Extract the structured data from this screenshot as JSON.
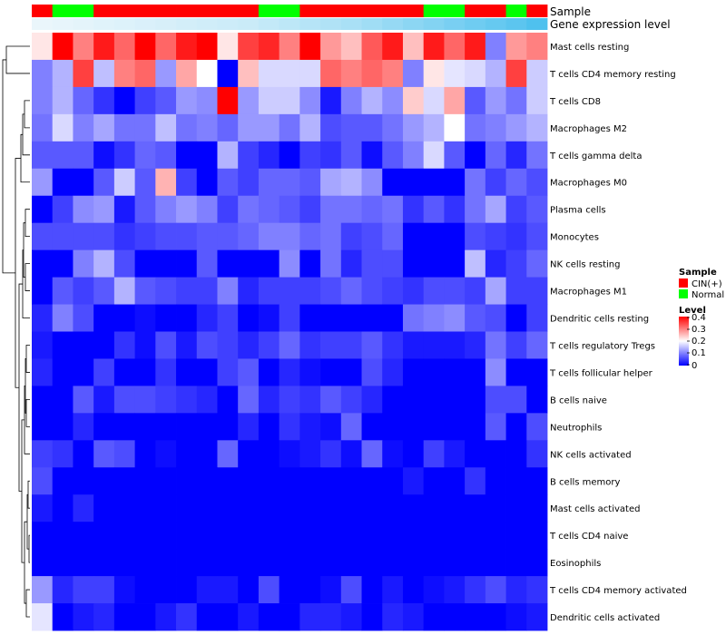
{
  "chart_data": {
    "type": "heatmap",
    "row_labels": [
      "Mast cells resting",
      "T cells CD4 memory resting",
      "T cells CD8",
      "Macrophages M2",
      "T cells gamma delta",
      "Macrophages M0",
      "Plasma cells",
      "Monocytes",
      "NK cells resting",
      "Macrophages M1",
      "Dendritic cells resting",
      "T cells regulatory  Tregs",
      "T cells follicular helper",
      "B cells naive",
      "Neutrophils",
      "NK cells activated",
      "B cells memory",
      "Mast cells activated",
      "T cells CD4 naive",
      "Eosinophils",
      "T cells CD4 memory activated",
      "Dendritic cells activated"
    ],
    "annotation_tracks": [
      {
        "name": "Sample",
        "values": [
          "CIN(+)",
          "Normal",
          "Normal",
          "CIN(+)",
          "CIN(+)",
          "CIN(+)",
          "CIN(+)",
          "CIN(+)",
          "CIN(+)",
          "CIN(+)",
          "CIN(+)",
          "Normal",
          "Normal",
          "CIN(+)",
          "CIN(+)",
          "CIN(+)",
          "CIN(+)",
          "CIN(+)",
          "CIN(+)",
          "Normal",
          "Normal",
          "CIN(+)",
          "CIN(+)",
          "Normal",
          "CIN(+)"
        ]
      },
      {
        "name": "Gene expression level",
        "values": [
          0.02,
          0.03,
          0.04,
          0.05,
          0.06,
          0.07,
          0.08,
          0.09,
          0.1,
          0.11,
          0.12,
          0.14,
          0.16,
          0.18,
          0.2,
          0.22,
          0.25,
          0.28,
          0.31,
          0.34,
          0.37,
          0.4,
          0.43,
          0.46,
          0.5
        ]
      }
    ],
    "values": [
      [
        0.22,
        0.4,
        0.3,
        0.38,
        0.32,
        0.4,
        0.32,
        0.38,
        0.4,
        0.22,
        0.35,
        0.37,
        0.3,
        0.4,
        0.28,
        0.25,
        0.33,
        0.38,
        0.25,
        0.38,
        0.32,
        0.38,
        0.1,
        0.28,
        0.3
      ],
      [
        0.1,
        0.14,
        0.35,
        0.15,
        0.3,
        0.32,
        0.12,
        0.27,
        0.2,
        0.0,
        0.25,
        0.17,
        0.17,
        0.17,
        0.32,
        0.3,
        0.32,
        0.3,
        0.1,
        0.22,
        0.18,
        0.17,
        0.14,
        0.35,
        0.16
      ],
      [
        0.1,
        0.14,
        0.08,
        0.04,
        0.0,
        0.05,
        0.07,
        0.12,
        0.11,
        0.4,
        0.12,
        0.16,
        0.16,
        0.11,
        0.02,
        0.1,
        0.14,
        0.11,
        0.24,
        0.17,
        0.27,
        0.07,
        0.12,
        0.09,
        0.16
      ],
      [
        0.09,
        0.17,
        0.1,
        0.13,
        0.09,
        0.09,
        0.15,
        0.09,
        0.1,
        0.08,
        0.12,
        0.12,
        0.09,
        0.14,
        0.06,
        0.07,
        0.07,
        0.09,
        0.12,
        0.14,
        0.2,
        0.09,
        0.1,
        0.12,
        0.14
      ],
      [
        0.07,
        0.07,
        0.07,
        0.01,
        0.04,
        0.08,
        0.07,
        0.0,
        0.0,
        0.14,
        0.05,
        0.03,
        0.0,
        0.05,
        0.04,
        0.07,
        0.01,
        0.07,
        0.1,
        0.17,
        0.07,
        0.0,
        0.08,
        0.03,
        0.09
      ],
      [
        0.12,
        0.0,
        0.0,
        0.07,
        0.16,
        0.07,
        0.26,
        0.05,
        0.0,
        0.07,
        0.05,
        0.08,
        0.08,
        0.07,
        0.13,
        0.14,
        0.11,
        0.0,
        0.0,
        0.0,
        0.0,
        0.09,
        0.05,
        0.08,
        0.06
      ],
      [
        0.0,
        0.05,
        0.11,
        0.12,
        0.02,
        0.07,
        0.1,
        0.12,
        0.1,
        0.05,
        0.09,
        0.08,
        0.07,
        0.05,
        0.09,
        0.09,
        0.08,
        0.09,
        0.04,
        0.07,
        0.04,
        0.09,
        0.13,
        0.05,
        0.07
      ],
      [
        0.06,
        0.06,
        0.06,
        0.06,
        0.04,
        0.05,
        0.06,
        0.06,
        0.07,
        0.07,
        0.08,
        0.1,
        0.1,
        0.08,
        0.09,
        0.05,
        0.06,
        0.08,
        0.0,
        0.0,
        0.0,
        0.06,
        0.05,
        0.04,
        0.06
      ],
      [
        0.0,
        0.0,
        0.1,
        0.14,
        0.06,
        0.0,
        0.0,
        0.0,
        0.07,
        0.0,
        0.0,
        0.0,
        0.11,
        0.0,
        0.09,
        0.03,
        0.06,
        0.06,
        0.0,
        0.0,
        0.0,
        0.15,
        0.03,
        0.05,
        0.08
      ],
      [
        0.0,
        0.07,
        0.05,
        0.07,
        0.14,
        0.07,
        0.06,
        0.05,
        0.05,
        0.1,
        0.03,
        0.05,
        0.05,
        0.05,
        0.06,
        0.08,
        0.06,
        0.05,
        0.04,
        0.06,
        0.06,
        0.05,
        0.13,
        0.05,
        0.05
      ],
      [
        0.03,
        0.1,
        0.06,
        0.0,
        0.0,
        0.01,
        0.0,
        0.0,
        0.03,
        0.05,
        0.0,
        0.01,
        0.05,
        0.0,
        0.0,
        0.0,
        0.0,
        0.0,
        0.09,
        0.1,
        0.11,
        0.07,
        0.06,
        0.0,
        0.05
      ],
      [
        0.02,
        0.0,
        0.0,
        0.0,
        0.04,
        0.01,
        0.06,
        0.02,
        0.06,
        0.05,
        0.03,
        0.05,
        0.08,
        0.04,
        0.05,
        0.05,
        0.07,
        0.04,
        0.02,
        0.02,
        0.02,
        0.03,
        0.09,
        0.05,
        0.08
      ],
      [
        0.03,
        0.0,
        0.0,
        0.05,
        0.0,
        0.0,
        0.04,
        0.0,
        0.0,
        0.05,
        0.07,
        0.0,
        0.03,
        0.01,
        0.0,
        0.0,
        0.06,
        0.03,
        0.0,
        0.0,
        0.0,
        0.0,
        0.11,
        0.0,
        0.0
      ],
      [
        0.0,
        0.0,
        0.07,
        0.02,
        0.06,
        0.06,
        0.05,
        0.04,
        0.03,
        0.0,
        0.08,
        0.03,
        0.05,
        0.04,
        0.07,
        0.05,
        0.03,
        0.0,
        0.0,
        0.0,
        0.0,
        0.0,
        0.06,
        0.06,
        0.0
      ],
      [
        0.0,
        0.0,
        0.03,
        0.0,
        0.0,
        0.0,
        0.0,
        0.0,
        0.0,
        0.0,
        0.03,
        0.0,
        0.04,
        0.02,
        0.01,
        0.08,
        0.0,
        0.0,
        0.0,
        0.0,
        0.0,
        0.0,
        0.07,
        0.0,
        0.06
      ],
      [
        0.05,
        0.04,
        0.0,
        0.07,
        0.06,
        0.0,
        0.01,
        0.0,
        0.0,
        0.08,
        0.0,
        0.0,
        0.01,
        0.02,
        0.04,
        0.01,
        0.08,
        0.01,
        0.0,
        0.05,
        0.02,
        0.0,
        0.0,
        0.0,
        0.04
      ],
      [
        0.06,
        0.0,
        0.0,
        0.0,
        0.0,
        0.0,
        0.0,
        0.0,
        0.0,
        0.0,
        0.0,
        0.0,
        0.0,
        0.0,
        0.0,
        0.0,
        0.0,
        0.0,
        0.02,
        0.0,
        0.0,
        0.04,
        0.0,
        0.0,
        0.0
      ],
      [
        0.02,
        0.0,
        0.03,
        0.0,
        0.0,
        0.0,
        0.0,
        0.0,
        0.0,
        0.0,
        0.0,
        0.0,
        0.0,
        0.0,
        0.0,
        0.0,
        0.0,
        0.0,
        0.0,
        0.0,
        0.0,
        0.0,
        0.0,
        0.0,
        0.0
      ],
      [
        0.0,
        0.0,
        0.0,
        0.0,
        0.0,
        0.0,
        0.0,
        0.0,
        0.0,
        0.0,
        0.0,
        0.0,
        0.0,
        0.0,
        0.0,
        0.0,
        0.0,
        0.0,
        0.0,
        0.0,
        0.0,
        0.0,
        0.0,
        0.0,
        0.0
      ],
      [
        0.0,
        0.0,
        0.0,
        0.0,
        0.0,
        0.0,
        0.0,
        0.0,
        0.0,
        0.0,
        0.0,
        0.0,
        0.0,
        0.0,
        0.0,
        0.0,
        0.0,
        0.0,
        0.0,
        0.0,
        0.0,
        0.0,
        0.0,
        0.0,
        0.0
      ],
      [
        0.12,
        0.03,
        0.05,
        0.05,
        0.01,
        0.0,
        0.0,
        0.0,
        0.02,
        0.02,
        0.0,
        0.06,
        0.0,
        0.0,
        0.01,
        0.06,
        0.0,
        0.02,
        0.0,
        0.01,
        0.02,
        0.04,
        0.06,
        0.03,
        0.04
      ],
      [
        0.18,
        0.0,
        0.02,
        0.03,
        0.0,
        0.0,
        0.02,
        0.04,
        0.0,
        0.0,
        0.02,
        0.0,
        0.0,
        0.03,
        0.03,
        0.02,
        0.0,
        0.03,
        0.02,
        0.0,
        0.0,
        0.0,
        0.0,
        0.01,
        0.02
      ]
    ],
    "color_scale": {
      "min": 0,
      "mid": 0.2,
      "max": 0.4,
      "low": "#0000FF",
      "midColor": "#FFFFFF",
      "high": "#FF0000"
    },
    "legend": {
      "sample": {
        "title": "Sample",
        "items": [
          {
            "label": "CIN(+)",
            "color": "#FF0000"
          },
          {
            "label": "Normal",
            "color": "#00FF00"
          }
        ]
      },
      "level": {
        "title": "Level",
        "ticks": [
          "0.4",
          "0.3",
          "0.2",
          "0.1",
          "0"
        ]
      }
    },
    "annotation_colors": {
      "CIN(+)": "#FF0000",
      "Normal": "#00FF00",
      "gene_low": "#EAF6FB",
      "gene_high": "#4FC1EE"
    },
    "dendrogram": "rows"
  }
}
